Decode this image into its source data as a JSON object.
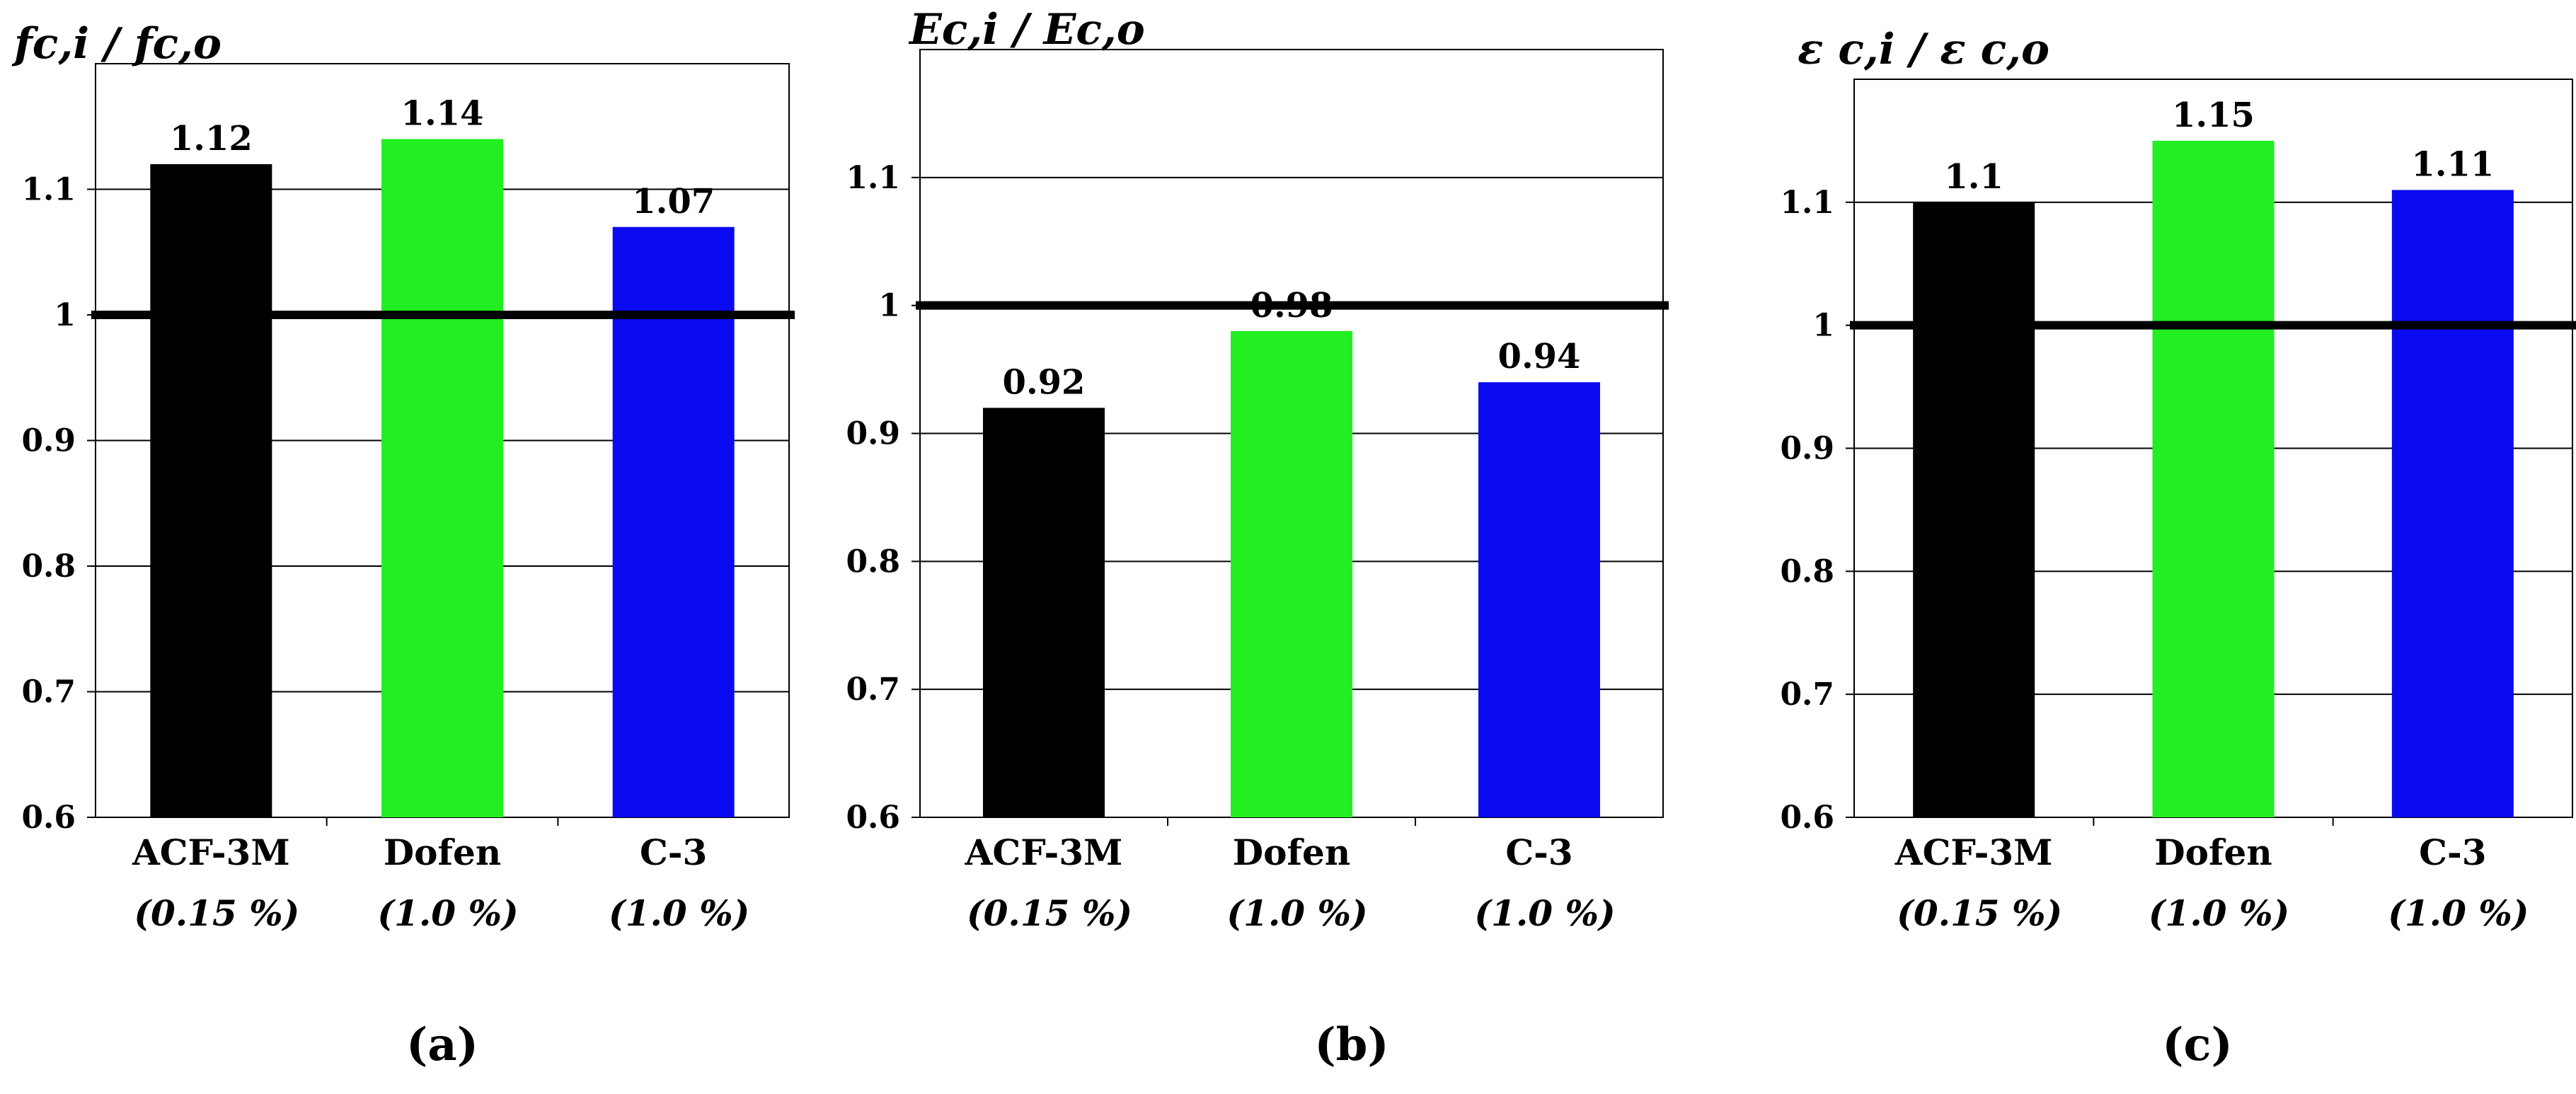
{
  "chart_data": [
    {
      "type": "bar",
      "panel_label": "(a)",
      "title": "fc,i / fc,o",
      "ylabel": "fc,i / fc,o",
      "xlabel": "",
      "ylim": [
        0.6,
        1.2
      ],
      "yticks": [
        "0.6",
        "0.7",
        "0.8",
        "0.9",
        "1",
        "1.1"
      ],
      "reference_line": 1.0,
      "categories": [
        "ACF-3M",
        "Dofen",
        "C-3"
      ],
      "category_sublabels": [
        "(0.15 %)",
        "(1.0 %)",
        "(1.0 %)"
      ],
      "values": [
        1.12,
        1.14,
        1.07
      ],
      "value_labels": [
        "1.12",
        "1.14",
        "1.07"
      ],
      "colors": [
        "#000000",
        "#22ee22",
        "#0a0af0"
      ],
      "grid": true
    },
    {
      "type": "bar",
      "panel_label": "(b)",
      "title": "Ec,i / Ec,o",
      "ylabel": "Ec,i / Ec,o",
      "xlabel": "",
      "ylim": [
        0.6,
        1.2
      ],
      "yticks": [
        "0.6",
        "0.7",
        "0.8",
        "0.9",
        "1",
        "1.1"
      ],
      "reference_line": 1.0,
      "categories": [
        "ACF-3M",
        "Dofen",
        "C-3"
      ],
      "category_sublabels": [
        "(0.15 %)",
        "(1.0 %)",
        "(1.0 %)"
      ],
      "values": [
        0.92,
        0.98,
        0.94
      ],
      "value_labels": [
        "0.92",
        "0.98",
        "0.94"
      ],
      "colors": [
        "#000000",
        "#22ee22",
        "#0a0af0"
      ],
      "grid": true
    },
    {
      "type": "bar",
      "panel_label": "(c)",
      "title": "ε c,i / ε c,o",
      "ylabel": "ε c,i / ε c,o",
      "xlabel": "",
      "ylim": [
        0.6,
        1.2
      ],
      "yticks": [
        "0.6",
        "0.7",
        "0.8",
        "0.9",
        "1",
        "1.1"
      ],
      "reference_line": 1.0,
      "categories": [
        "ACF-3M",
        "Dofen",
        "C-3"
      ],
      "category_sublabels": [
        "(0.15 %)",
        "(1.0 %)",
        "(1.0 %)"
      ],
      "values": [
        1.1,
        1.15,
        1.11
      ],
      "value_labels": [
        "1.1",
        "1.15",
        "1.11"
      ],
      "colors": [
        "#000000",
        "#22ee22",
        "#0a0af0"
      ],
      "grid": true
    }
  ]
}
